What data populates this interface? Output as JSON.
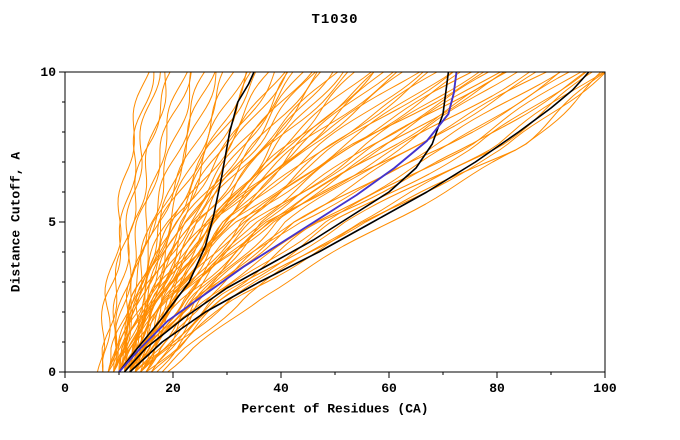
{
  "page": {
    "background": "#ffffff"
  },
  "chart_data": {
    "type": "line",
    "title": "T1030",
    "xlabel": "Percent of Residues (CA)",
    "ylabel": "Distance Cutoff, A",
    "xlim": [
      0,
      100
    ],
    "ylim": [
      0,
      10
    ],
    "x_major_ticks": [
      0,
      20,
      40,
      60,
      80,
      100
    ],
    "x_minor_step": 10,
    "y_major_ticks": [
      0,
      5,
      10
    ],
    "y_minor_step": 1,
    "grid": false,
    "legend": "none",
    "colors": {
      "ensemble": "#ff8c00",
      "highlight_black": "#000000",
      "highlight_blue": "#4433cc",
      "frame": "#000000",
      "background": "#ffffff"
    },
    "ensemble": {
      "name": "prediction-ensemble",
      "color_key": "ensemble",
      "y_anchors": [
        0,
        2.5,
        5,
        7.5,
        10
      ],
      "curves_x": [
        [
          8,
          10,
          12,
          14,
          17
        ],
        [
          9,
          11,
          13,
          16,
          19
        ],
        [
          7,
          9,
          12,
          15,
          20
        ],
        [
          10,
          12,
          15,
          18,
          22
        ],
        [
          8,
          11,
          14,
          18,
          23
        ],
        [
          11,
          13,
          16,
          20,
          24
        ],
        [
          9,
          12,
          16,
          21,
          26
        ],
        [
          12,
          14,
          18,
          22,
          27
        ],
        [
          10,
          13,
          17,
          23,
          28
        ],
        [
          8,
          12,
          17,
          24,
          30
        ],
        [
          11,
          15,
          19,
          25,
          31
        ],
        [
          9,
          13,
          18,
          26,
          33
        ],
        [
          12,
          16,
          21,
          27,
          34
        ],
        [
          10,
          14,
          20,
          28,
          35
        ],
        [
          7,
          8,
          10,
          12,
          15
        ],
        [
          6,
          8,
          11,
          13,
          16
        ],
        [
          9,
          13,
          19,
          27,
          36
        ],
        [
          11,
          15,
          21,
          29,
          38
        ],
        [
          8,
          13,
          20,
          30,
          40
        ],
        [
          12,
          17,
          23,
          31,
          41
        ],
        [
          10,
          15,
          22,
          32,
          43
        ],
        [
          13,
          18,
          25,
          34,
          44
        ],
        [
          9,
          14,
          22,
          33,
          45
        ],
        [
          11,
          17,
          25,
          35,
          47
        ],
        [
          14,
          19,
          27,
          37,
          48
        ],
        [
          10,
          16,
          24,
          36,
          50
        ],
        [
          12,
          18,
          27,
          39,
          51
        ],
        [
          8,
          15,
          24,
          38,
          53
        ],
        [
          13,
          20,
          29,
          41,
          54
        ],
        [
          11,
          17,
          27,
          40,
          56
        ],
        [
          14,
          21,
          30,
          43,
          57
        ],
        [
          9,
          16,
          26,
          41,
          58
        ],
        [
          12,
          19,
          29,
          44,
          59
        ],
        [
          10,
          18,
          28,
          43,
          60
        ],
        [
          10,
          14,
          20,
          30,
          39
        ],
        [
          12,
          16,
          23,
          33,
          42
        ],
        [
          9,
          15,
          23,
          35,
          46
        ],
        [
          13,
          19,
          28,
          38,
          49
        ],
        [
          11,
          17,
          27,
          43,
          62
        ],
        [
          13,
          20,
          30,
          45,
          63
        ],
        [
          9,
          16,
          27,
          44,
          65
        ],
        [
          12,
          19,
          30,
          47,
          66
        ],
        [
          15,
          22,
          33,
          49,
          68
        ],
        [
          10,
          18,
          30,
          48,
          69
        ],
        [
          13,
          21,
          33,
          51,
          71
        ],
        [
          11,
          19,
          31,
          50,
          72
        ],
        [
          14,
          23,
          35,
          53,
          74
        ],
        [
          12,
          20,
          33,
          52,
          75
        ],
        [
          16,
          24,
          37,
          55,
          76
        ],
        [
          10,
          19,
          32,
          53,
          78
        ],
        [
          13,
          22,
          36,
          56,
          79
        ],
        [
          15,
          25,
          39,
          58,
          80
        ],
        [
          11,
          21,
          35,
          57,
          81
        ],
        [
          14,
          24,
          38,
          59,
          82
        ],
        [
          12,
          22,
          37,
          60,
          82
        ],
        [
          16,
          26,
          41,
          62,
          83
        ],
        [
          12,
          22,
          38,
          62,
          86
        ],
        [
          15,
          26,
          42,
          65,
          88
        ],
        [
          10,
          21,
          38,
          64,
          89
        ],
        [
          13,
          25,
          43,
          68,
          91
        ],
        [
          17,
          29,
          47,
          71,
          92
        ],
        [
          11,
          24,
          43,
          70,
          94
        ],
        [
          14,
          28,
          48,
          74,
          95
        ],
        [
          16,
          30,
          50,
          76,
          96
        ],
        [
          12,
          26,
          47,
          75,
          97
        ],
        [
          18,
          33,
          54,
          80,
          98
        ],
        [
          13,
          29,
          52,
          79,
          99
        ],
        [
          15,
          32,
          56,
          82,
          100
        ],
        [
          19,
          36,
          60,
          85,
          100
        ],
        [
          14,
          31,
          55,
          84,
          100
        ]
      ]
    },
    "highlighted_series": [
      {
        "name": "model-black-1",
        "color_key": "highlight_black",
        "points": [
          [
            10,
            0
          ],
          [
            13,
            0.7
          ],
          [
            18,
            1.8
          ],
          [
            23,
            3
          ],
          [
            26,
            4.2
          ],
          [
            27.5,
            5.2
          ],
          [
            29,
            6.5
          ],
          [
            30.5,
            8
          ],
          [
            32,
            9
          ],
          [
            34,
            9.6
          ],
          [
            35,
            10
          ]
        ]
      },
      {
        "name": "model-black-2",
        "color_key": "highlight_black",
        "points": [
          [
            11,
            0
          ],
          [
            15,
            0.8
          ],
          [
            22,
            1.8
          ],
          [
            30,
            2.8
          ],
          [
            38,
            3.6
          ],
          [
            46,
            4.4
          ],
          [
            53,
            5.2
          ],
          [
            60,
            6
          ],
          [
            65,
            6.8
          ],
          [
            68,
            7.6
          ],
          [
            70,
            8.6
          ],
          [
            71,
            10
          ]
        ]
      },
      {
        "name": "model-black-3",
        "color_key": "highlight_black",
        "points": [
          [
            12,
            0
          ],
          [
            18,
            1
          ],
          [
            26,
            2
          ],
          [
            36,
            3
          ],
          [
            47,
            4
          ],
          [
            57,
            5
          ],
          [
            67,
            6
          ],
          [
            76,
            7
          ],
          [
            84,
            8
          ],
          [
            90,
            8.8
          ],
          [
            94,
            9.4
          ],
          [
            97,
            10
          ]
        ]
      },
      {
        "name": "model-blue",
        "color_key": "highlight_blue",
        "points": [
          [
            10,
            0
          ],
          [
            14,
            0.8
          ],
          [
            19,
            1.7
          ],
          [
            26,
            2.6
          ],
          [
            33,
            3.5
          ],
          [
            40,
            4.3
          ],
          [
            47,
            5.1
          ],
          [
            54,
            5.9
          ],
          [
            61,
            6.8
          ],
          [
            67,
            7.7
          ],
          [
            71,
            8.6
          ],
          [
            72,
            9.3
          ],
          [
            72.5,
            10
          ]
        ]
      }
    ]
  }
}
